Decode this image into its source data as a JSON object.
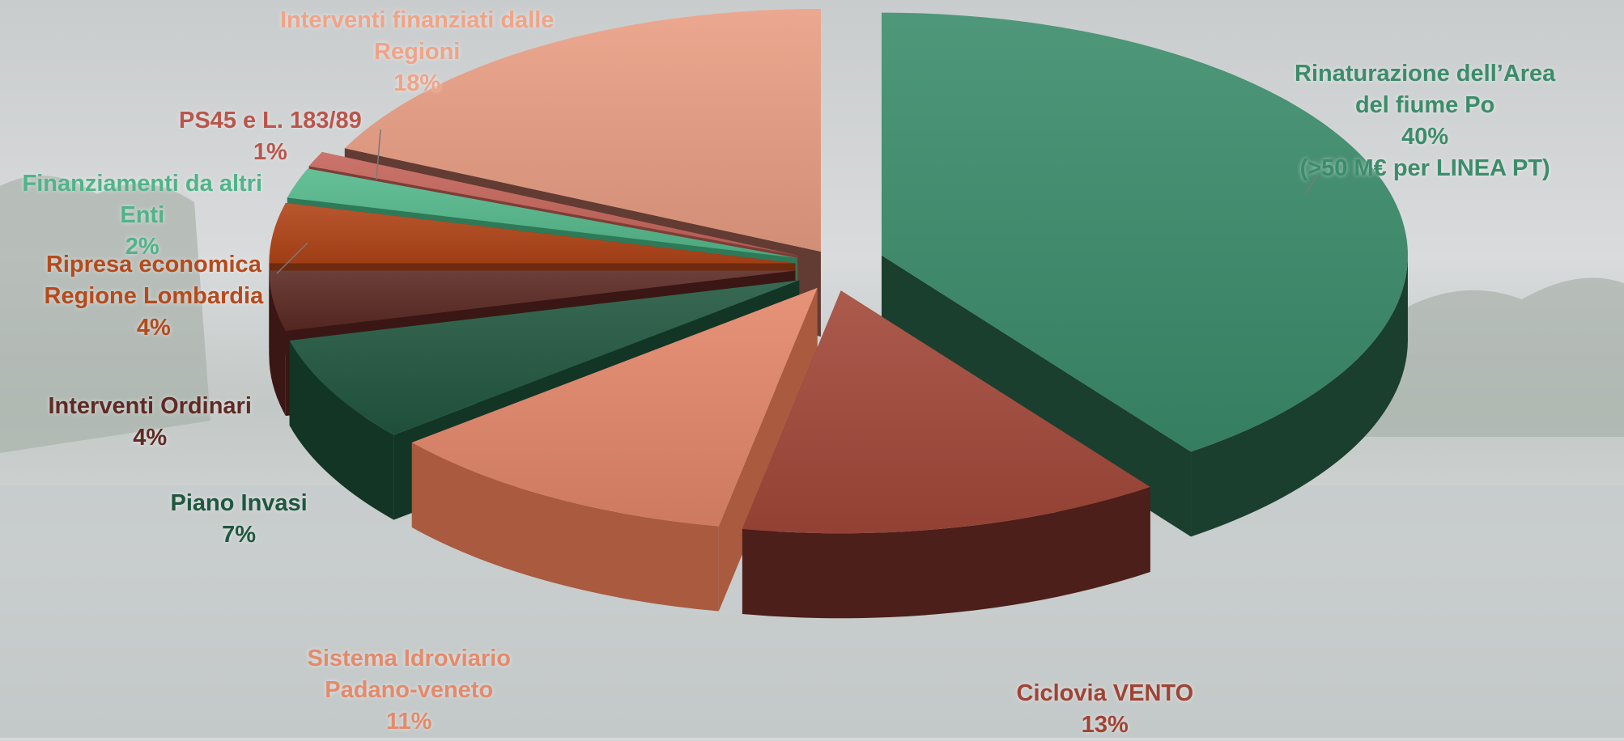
{
  "chart_data": {
    "type": "pie",
    "title": "",
    "slices": [
      {
        "key": "rinaturazione",
        "label_lines": [
          "Rinaturazione dell’Area",
          "del fiume Po",
          "40%",
          "(>50 M€ per LINEA PT)"
        ],
        "value": 40,
        "color": "#3b8c6b",
        "side_color": "#1a3f2f",
        "label_color": "#3c8c6b"
      },
      {
        "key": "vento",
        "label_lines": [
          "Ciclovia VENTO",
          "13%"
        ],
        "value": 13,
        "color": "#a24839",
        "side_color": "#4c1f1a",
        "label_color": "#9f4335"
      },
      {
        "key": "idroviario",
        "label_lines": [
          "Sistema Idroviario",
          "Padano-veneto",
          "11%"
        ],
        "value": 11,
        "color": "#e3876a",
        "side_color": "#a95a3f",
        "label_color": "#e48a6b"
      },
      {
        "key": "invasi",
        "label_lines": [
          "Piano Invasi",
          "7%"
        ],
        "value": 7,
        "color": "#225840",
        "side_color": "#123526",
        "label_color": "#1f5740"
      },
      {
        "key": "ordinari",
        "label_lines": [
          "Interventi Ordinari",
          "4%"
        ],
        "value": 4,
        "color": "#5c2a24",
        "side_color": "#3a1714",
        "label_color": "#5f2a24"
      },
      {
        "key": "lombardia",
        "label_lines": [
          "Ripresa economica",
          "Regione Lombardia",
          "4%"
        ],
        "value": 4,
        "color": "#b14418",
        "side_color": "#6e2a0e",
        "label_color": "#b54a1c"
      },
      {
        "key": "altri",
        "label_lines": [
          "Finanziamenti da altri",
          "Enti",
          "2%"
        ],
        "value": 2,
        "color": "#55b98c",
        "side_color": "#2e7a58",
        "label_color": "#4fb489"
      },
      {
        "key": "ps45",
        "label_lines": [
          "PS45 e L. 183/89",
          "1%"
        ],
        "value": 1,
        "color": "#c5655b",
        "side_color": "#7d3d37",
        "label_color": "#b9564c"
      },
      {
        "key": "regioni",
        "label_lines": [
          "Interventi finanziati dalle",
          "Regioni",
          "18%"
        ],
        "value": 18,
        "color": "#e99e83",
        "side_color": "#623b33",
        "label_color": "#f0a487"
      }
    ]
  }
}
